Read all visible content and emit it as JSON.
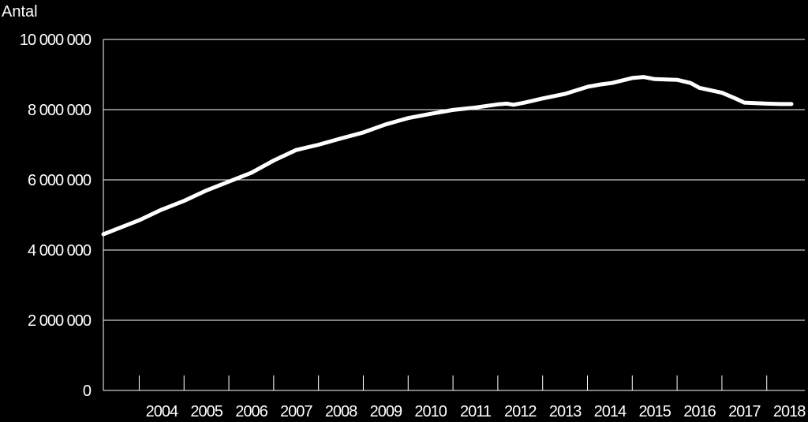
{
  "chart_data": {
    "type": "line",
    "title": "",
    "xlabel": "",
    "ylabel": "Antal",
    "ylim": [
      0,
      10000000
    ],
    "grid": true,
    "legend": "none",
    "colors": {
      "background": "#000000",
      "line": "#ffffff",
      "grid": "#ffffff",
      "text": "#ffffff"
    },
    "y_ticks": [
      {
        "value": 0,
        "label": "0"
      },
      {
        "value": 2000000,
        "label": "2 000 000"
      },
      {
        "value": 4000000,
        "label": "4 000 000"
      },
      {
        "value": 6000000,
        "label": "6 000 000"
      },
      {
        "value": 8000000,
        "label": "8 000 000"
      },
      {
        "value": 10000000,
        "label": "10 000 000"
      }
    ],
    "x_ticks": [
      "2004",
      "2005",
      "2006",
      "2007",
      "2008",
      "2009",
      "2010",
      "2011",
      "2012",
      "2013",
      "2014",
      "2015",
      "2016",
      "2017",
      "2018"
    ],
    "series": [
      {
        "points": [
          [
            2003.2,
            4450000
          ],
          [
            2003.6,
            4650000
          ],
          [
            2004.0,
            4850000
          ],
          [
            2004.5,
            5150000
          ],
          [
            2005.0,
            5400000
          ],
          [
            2005.5,
            5700000
          ],
          [
            2006.0,
            5950000
          ],
          [
            2006.5,
            6200000
          ],
          [
            2007.0,
            6550000
          ],
          [
            2007.5,
            6850000
          ],
          [
            2008.0,
            7000000
          ],
          [
            2008.5,
            7180000
          ],
          [
            2009.0,
            7350000
          ],
          [
            2009.5,
            7580000
          ],
          [
            2010.0,
            7760000
          ],
          [
            2010.5,
            7880000
          ],
          [
            2011.0,
            7990000
          ],
          [
            2011.5,
            8060000
          ],
          [
            2012.0,
            8150000
          ],
          [
            2012.2,
            8170000
          ],
          [
            2012.35,
            8140000
          ],
          [
            2012.6,
            8200000
          ],
          [
            2013.0,
            8320000
          ],
          [
            2013.5,
            8450000
          ],
          [
            2014.0,
            8650000
          ],
          [
            2014.3,
            8720000
          ],
          [
            2014.55,
            8760000
          ],
          [
            2015.0,
            8900000
          ],
          [
            2015.25,
            8930000
          ],
          [
            2015.5,
            8870000
          ],
          [
            2016.0,
            8850000
          ],
          [
            2016.3,
            8760000
          ],
          [
            2016.5,
            8620000
          ],
          [
            2017.0,
            8480000
          ],
          [
            2017.3,
            8320000
          ],
          [
            2017.5,
            8200000
          ],
          [
            2018.0,
            8170000
          ],
          [
            2018.3,
            8160000
          ],
          [
            2018.55,
            8160000
          ]
        ]
      }
    ]
  }
}
